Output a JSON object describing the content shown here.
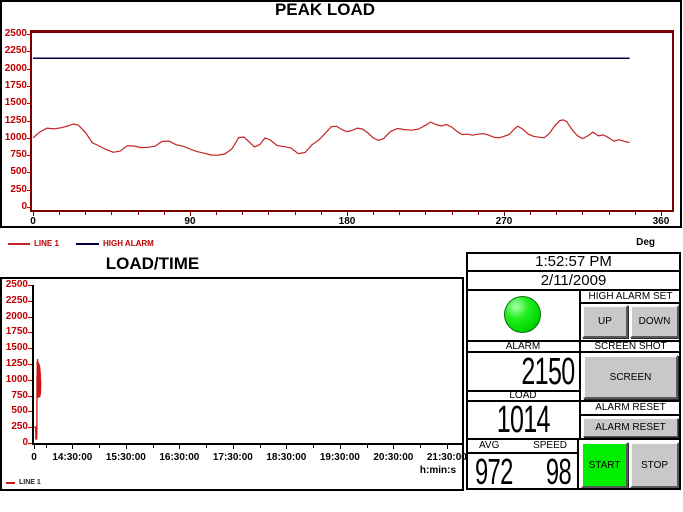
{
  "panel": {
    "time": "1:52:57 PM",
    "date": "2/11/2009",
    "alarm_indicator_label": "ALARM",
    "indicator_color": "#00e400",
    "high_alarm_set_label": "HIGH ALARM SET",
    "up_button": "UP",
    "down_button": "DOWN",
    "high_alarm_value": "2150",
    "screen_shot_label": "SCREEN SHOT",
    "screen_button": "SCREEN",
    "load_label": "LOAD",
    "load_value": "1014",
    "alarm_reset_label": "ALARM RESET",
    "alarm_reset_button": "ALARM RESET",
    "avg_label": "AVG",
    "speed_label": "SPEED",
    "avg_value": "972",
    "speed_value": "98",
    "start_button": "START",
    "stop_button": "STOP"
  },
  "chart_data": [
    {
      "id": "peak",
      "type": "line",
      "title": "PEAK LOAD",
      "xlabel": "Deg",
      "x_range": [
        0,
        360
      ],
      "x_major_ticks": [
        0,
        90,
        180,
        270,
        360
      ],
      "x_minor_step": 15,
      "ylim": [
        0,
        2500
      ],
      "y_tick_step": 250,
      "grid": false,
      "legend_position": "bottom-left",
      "series": [
        {
          "name": "LINE 1",
          "color": "#c22424",
          "points": [
            [
              0,
              1000
            ],
            [
              4,
              1085
            ],
            [
              8,
              1140
            ],
            [
              12,
              1128
            ],
            [
              16,
              1145
            ],
            [
              20,
              1170
            ],
            [
              23,
              1200
            ],
            [
              26,
              1182
            ],
            [
              30,
              1080
            ],
            [
              34,
              930
            ],
            [
              38,
              880
            ],
            [
              42,
              830
            ],
            [
              46,
              790
            ],
            [
              50,
              808
            ],
            [
              54,
              885
            ],
            [
              58,
              882
            ],
            [
              62,
              858
            ],
            [
              66,
              862
            ],
            [
              70,
              878
            ],
            [
              74,
              948
            ],
            [
              78,
              952
            ],
            [
              82,
              900
            ],
            [
              86,
              878
            ],
            [
              90,
              838
            ],
            [
              94,
              800
            ],
            [
              98,
              778
            ],
            [
              102,
              752
            ],
            [
              106,
              748
            ],
            [
              110,
              768
            ],
            [
              114,
              840
            ],
            [
              118,
              1005
            ],
            [
              121,
              1010
            ],
            [
              124,
              938
            ],
            [
              127,
              868
            ],
            [
              130,
              902
            ],
            [
              133,
              1000
            ],
            [
              136,
              968
            ],
            [
              140,
              888
            ],
            [
              144,
              872
            ],
            [
              148,
              852
            ],
            [
              152,
              772
            ],
            [
              156,
              788
            ],
            [
              160,
              900
            ],
            [
              164,
              972
            ],
            [
              168,
              1080
            ],
            [
              171,
              1160
            ],
            [
              174,
              1168
            ],
            [
              177,
              1120
            ],
            [
              180,
              1088
            ],
            [
              183,
              1108
            ],
            [
              186,
              1140
            ],
            [
              189,
              1125
            ],
            [
              192,
              1070
            ],
            [
              195,
              1000
            ],
            [
              198,
              962
            ],
            [
              201,
              988
            ],
            [
              205,
              1092
            ],
            [
              209,
              1135
            ],
            [
              213,
              1118
            ],
            [
              217,
              1110
            ],
            [
              221,
              1125
            ],
            [
              225,
              1180
            ],
            [
              228,
              1228
            ],
            [
              231,
              1192
            ],
            [
              234,
              1170
            ],
            [
              237,
              1192
            ],
            [
              240,
              1155
            ],
            [
              243,
              1092
            ],
            [
              246,
              1048
            ],
            [
              249,
              1052
            ],
            [
              252,
              1038
            ],
            [
              255,
              1052
            ],
            [
              258,
              1060
            ],
            [
              261,
              1042
            ],
            [
              264,
              1008
            ],
            [
              267,
              998
            ],
            [
              270,
              1022
            ],
            [
              273,
              1048
            ],
            [
              276,
              1130
            ],
            [
              278,
              1168
            ],
            [
              281,
              1120
            ],
            [
              284,
              1052
            ],
            [
              287,
              1022
            ],
            [
              290,
              1008
            ],
            [
              293,
              1000
            ],
            [
              296,
              1060
            ],
            [
              299,
              1172
            ],
            [
              302,
              1248
            ],
            [
              304,
              1258
            ],
            [
              306,
              1232
            ],
            [
              309,
              1118
            ],
            [
              312,
              1032
            ],
            [
              315,
              988
            ],
            [
              318,
              1028
            ],
            [
              321,
              1082
            ],
            [
              324,
              1028
            ],
            [
              327,
              1042
            ],
            [
              330,
              1000
            ],
            [
              333,
              952
            ],
            [
              336,
              972
            ],
            [
              339,
              948
            ],
            [
              342,
              932
            ]
          ]
        },
        {
          "name": "HIGH ALARM",
          "color": "#00003c",
          "points": [
            [
              0,
              2150
            ],
            [
              342,
              2150
            ]
          ]
        }
      ]
    },
    {
      "id": "load",
      "type": "line",
      "title": "LOAD/TIME",
      "xlabel": "h:min:s",
      "x_unit": "minutes-from-plot-origin",
      "x_range_minutes": [
        0,
        480
      ],
      "x_major_ticks": [
        {
          "min": 0,
          "label": "0"
        },
        {
          "min": 43,
          "label": "14:30:00"
        },
        {
          "min": 103,
          "label": "15:30:00"
        },
        {
          "min": 163,
          "label": "16:30:00"
        },
        {
          "min": 223,
          "label": "17:30:00"
        },
        {
          "min": 283,
          "label": "18:30:00"
        },
        {
          "min": 343,
          "label": "19:30:00"
        },
        {
          "min": 403,
          "label": "20:30:00"
        },
        {
          "min": 463,
          "label": "21:30:00"
        }
      ],
      "x_minor_ticks": [
        13,
        73,
        133,
        193,
        253,
        313,
        373,
        433
      ],
      "ylim": [
        0,
        2500
      ],
      "y_tick_step": 250,
      "grid": false,
      "legend_position": "bottom-left",
      "series": [
        {
          "name": "LINE 1",
          "color": "#cc1515",
          "points": [
            [
              0,
              252
            ],
            [
              0.8,
              250
            ],
            [
              1.6,
              248
            ],
            [
              1.9,
              250
            ],
            [
              2.1,
              64
            ],
            [
              2.7,
              60
            ],
            [
              3.0,
              70
            ],
            [
              3.2,
              255
            ],
            [
              3.35,
              1075
            ],
            [
              3.5,
              705
            ],
            [
              3.62,
              1292
            ],
            [
              3.75,
              728
            ],
            [
              3.9,
              1330
            ],
            [
              4.02,
              742
            ],
            [
              4.15,
              1298
            ],
            [
              4.3,
              718
            ],
            [
              4.45,
              1282
            ],
            [
              4.6,
              735
            ],
            [
              4.72,
              1262
            ],
            [
              4.85,
              715
            ],
            [
              5.0,
              1268
            ],
            [
              5.15,
              728
            ],
            [
              5.3,
              1242
            ],
            [
              5.45,
              722
            ],
            [
              5.6,
              1252
            ],
            [
              5.75,
              735
            ],
            [
              5.9,
              1218
            ],
            [
              6.05,
              725
            ],
            [
              6.2,
              1228
            ],
            [
              6.35,
              730
            ],
            [
              6.5,
              1198
            ],
            [
              6.65,
              738
            ],
            [
              6.8,
              1148
            ],
            [
              6.95,
              758
            ],
            [
              7.1,
              1098
            ],
            [
              7.25,
              778
            ],
            [
              7.4,
              998
            ],
            [
              7.55,
              905
            ]
          ]
        }
      ]
    }
  ]
}
